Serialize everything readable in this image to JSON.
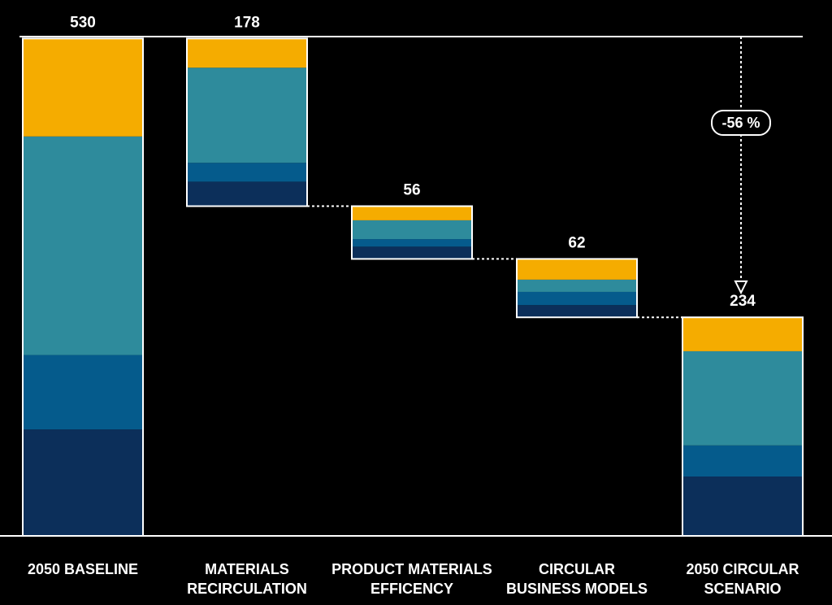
{
  "chart_data": {
    "type": "waterfall",
    "title": "",
    "xlabel": "",
    "ylabel": "",
    "ylim": [
      0,
      530
    ],
    "categories": [
      [
        "2050 BASELINE"
      ],
      [
        "MATERIALS",
        "RECIRCULATION"
      ],
      [
        "PRODUCT MATERIALS",
        "EFFICENCY"
      ],
      [
        "CIRCULAR",
        "BUSINESS MODELS"
      ],
      [
        "2050 CIRCULAR",
        "SCENARIO"
      ]
    ],
    "totals": [
      "530",
      "178",
      "56",
      "62",
      "234"
    ],
    "kinds": [
      "total",
      "decrease",
      "decrease",
      "decrease",
      "total"
    ],
    "series_colors": [
      "#0c2f5a",
      "#055b8c",
      "#2e8b9c",
      "#f5ac00"
    ],
    "segments": [
      [
        113,
        79,
        232,
        104
      ],
      [
        26,
        20,
        101,
        31
      ],
      [
        13,
        8,
        20,
        15
      ],
      [
        13,
        14,
        13,
        22
      ],
      [
        63,
        33,
        100,
        36
      ]
    ],
    "annotation": {
      "label": "-56 %",
      "from": 530,
      "to": 234
    }
  }
}
